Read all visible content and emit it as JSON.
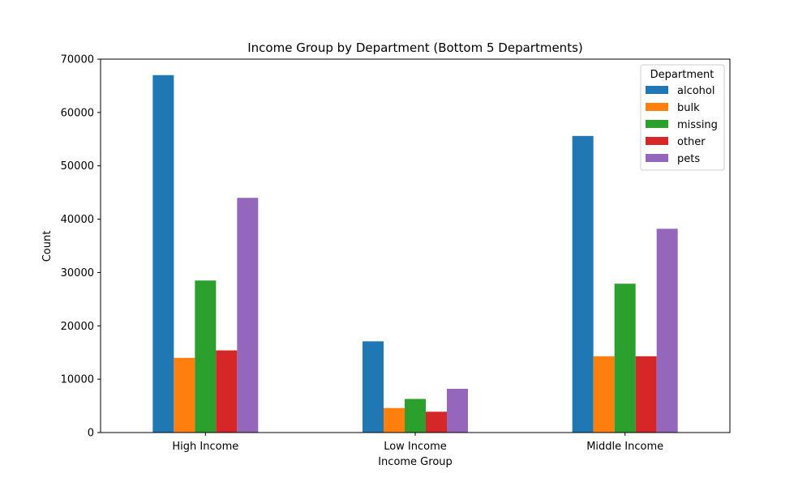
{
  "chart_data": {
    "type": "bar",
    "title": "Income Group by Department (Bottom 5 Departments)",
    "xlabel": "Income Group",
    "ylabel": "Count",
    "categories": [
      "High Income",
      "Low Income",
      "Middle Income"
    ],
    "ylim": [
      0,
      70000
    ],
    "yticks": [
      0,
      10000,
      20000,
      30000,
      40000,
      50000,
      60000,
      70000
    ],
    "yticklabels": [
      "0",
      "10000",
      "20000",
      "30000",
      "40000",
      "50000",
      "60000",
      "70000"
    ],
    "grid": false,
    "legend": {
      "title": "Department",
      "placement": "top-right"
    },
    "series": [
      {
        "name": "alcohol",
        "color": "#1f77b4",
        "values": [
          67000,
          17100,
          55600
        ]
      },
      {
        "name": "bulk",
        "color": "#ff7f0e",
        "values": [
          14000,
          4600,
          14300
        ]
      },
      {
        "name": "missing",
        "color": "#2ca02c",
        "values": [
          28500,
          6300,
          27900
        ]
      },
      {
        "name": "other",
        "color": "#d62728",
        "values": [
          15400,
          3900,
          14300
        ]
      },
      {
        "name": "pets",
        "color": "#9467bd",
        "values": [
          44000,
          8200,
          38200
        ]
      }
    ]
  }
}
